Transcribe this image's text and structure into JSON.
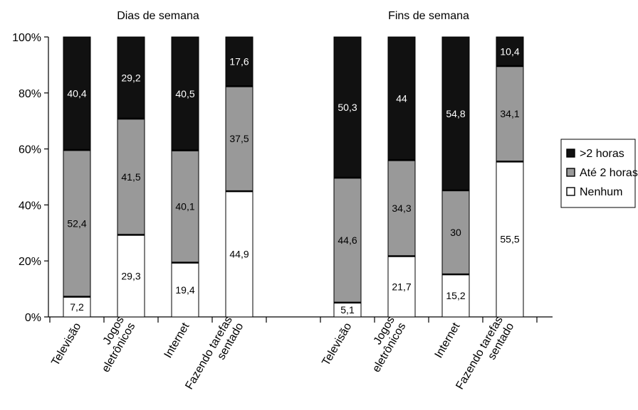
{
  "chart_data": {
    "type": "bar",
    "stacked": true,
    "ylim": [
      0,
      100
    ],
    "yticks": [
      "0%",
      "20%",
      "40%",
      "60%",
      "80%",
      "100%"
    ],
    "legend": {
      "position": "right"
    },
    "series": [
      {
        "name": "Nenhum",
        "color": "#ffffff",
        "label_color": "#000000"
      },
      {
        "name": "Até 2 horas",
        "color": "#999999",
        "label_color": "#000000"
      },
      {
        "name": ">2 horas",
        "color": "#111111",
        "label_color": "#ffffff"
      }
    ],
    "panels": [
      {
        "title": "Dias de semana",
        "categories": [
          {
            "label": [
              "Televisão"
            ],
            "values": [
              7.2,
              52.4,
              40.4
            ],
            "labels": [
              "7,2",
              "52,4",
              "40,4"
            ]
          },
          {
            "label": [
              "Jogos",
              "eletrônicos"
            ],
            "values": [
              29.3,
              41.5,
              29.2
            ],
            "labels": [
              "29,3",
              "41,5",
              "29,2"
            ]
          },
          {
            "label": [
              "Internet"
            ],
            "values": [
              19.4,
              40.1,
              40.5
            ],
            "labels": [
              "19,4",
              "40,1",
              "40,5"
            ]
          },
          {
            "label": [
              "Fazendo tarefas",
              "sentado"
            ],
            "values": [
              44.9,
              37.5,
              17.6
            ],
            "labels": [
              "44,9",
              "37,5",
              "17,6"
            ]
          }
        ]
      },
      {
        "title": "Fins de semana",
        "categories": [
          {
            "label": [
              "Televisão"
            ],
            "values": [
              5.1,
              44.6,
              50.3
            ],
            "labels": [
              "5,1",
              "44,6",
              "50,3"
            ]
          },
          {
            "label": [
              "Jogos",
              "eletrônicos"
            ],
            "values": [
              21.7,
              34.3,
              44
            ],
            "labels": [
              "21,7",
              "34,3",
              "44"
            ]
          },
          {
            "label": [
              "Internet"
            ],
            "values": [
              15.2,
              30,
              54.8
            ],
            "labels": [
              "15,2",
              "30",
              "54,8"
            ]
          },
          {
            "label": [
              "Fazendo tarefas",
              "sentado"
            ],
            "values": [
              55.5,
              34.1,
              10.4
            ],
            "labels": [
              "55,5",
              "34,1",
              "10,4"
            ]
          }
        ]
      }
    ]
  }
}
